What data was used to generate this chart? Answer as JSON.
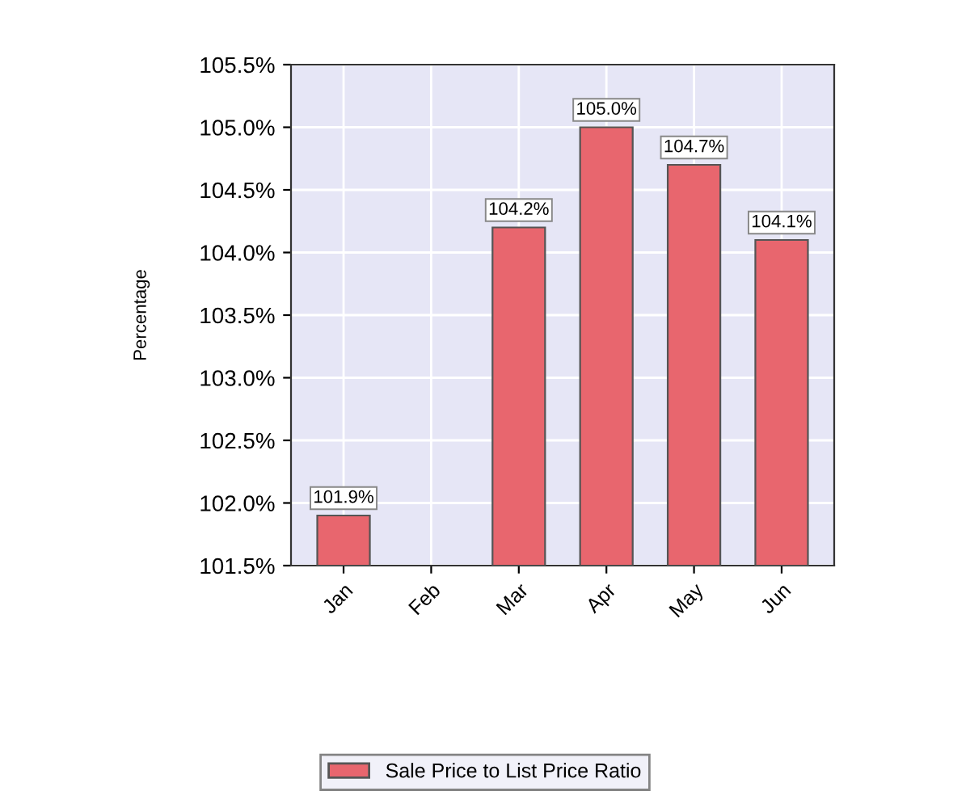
{
  "chart_data": {
    "type": "bar",
    "ylabel": "Percentage",
    "categories": [
      "Jan",
      "Feb",
      "Mar",
      "Apr",
      "May",
      "Jun"
    ],
    "series": [
      {
        "name": "Sale Price to List Price Ratio",
        "color": "#e8666e",
        "values": [
          101.9,
          null,
          104.2,
          105.0,
          104.7,
          104.1
        ],
        "value_labels": [
          "101.9%",
          null,
          "104.2%",
          "105.0%",
          "104.7%",
          "104.1%"
        ]
      }
    ],
    "ylim": [
      101.5,
      105.5
    ],
    "yticks": [
      {
        "value": 101.5,
        "label": "101.5%"
      },
      {
        "value": 102.0,
        "label": "102.0%"
      },
      {
        "value": 102.5,
        "label": "102.5%"
      },
      {
        "value": 103.0,
        "label": "103.0%"
      },
      {
        "value": 103.5,
        "label": "103.5%"
      },
      {
        "value": 104.0,
        "label": "104.0%"
      },
      {
        "value": 104.5,
        "label": "104.5%"
      },
      {
        "value": 105.0,
        "label": "105.0%"
      },
      {
        "value": 105.5,
        "label": "105.5%"
      }
    ],
    "grid": true,
    "legend": "bottom"
  }
}
